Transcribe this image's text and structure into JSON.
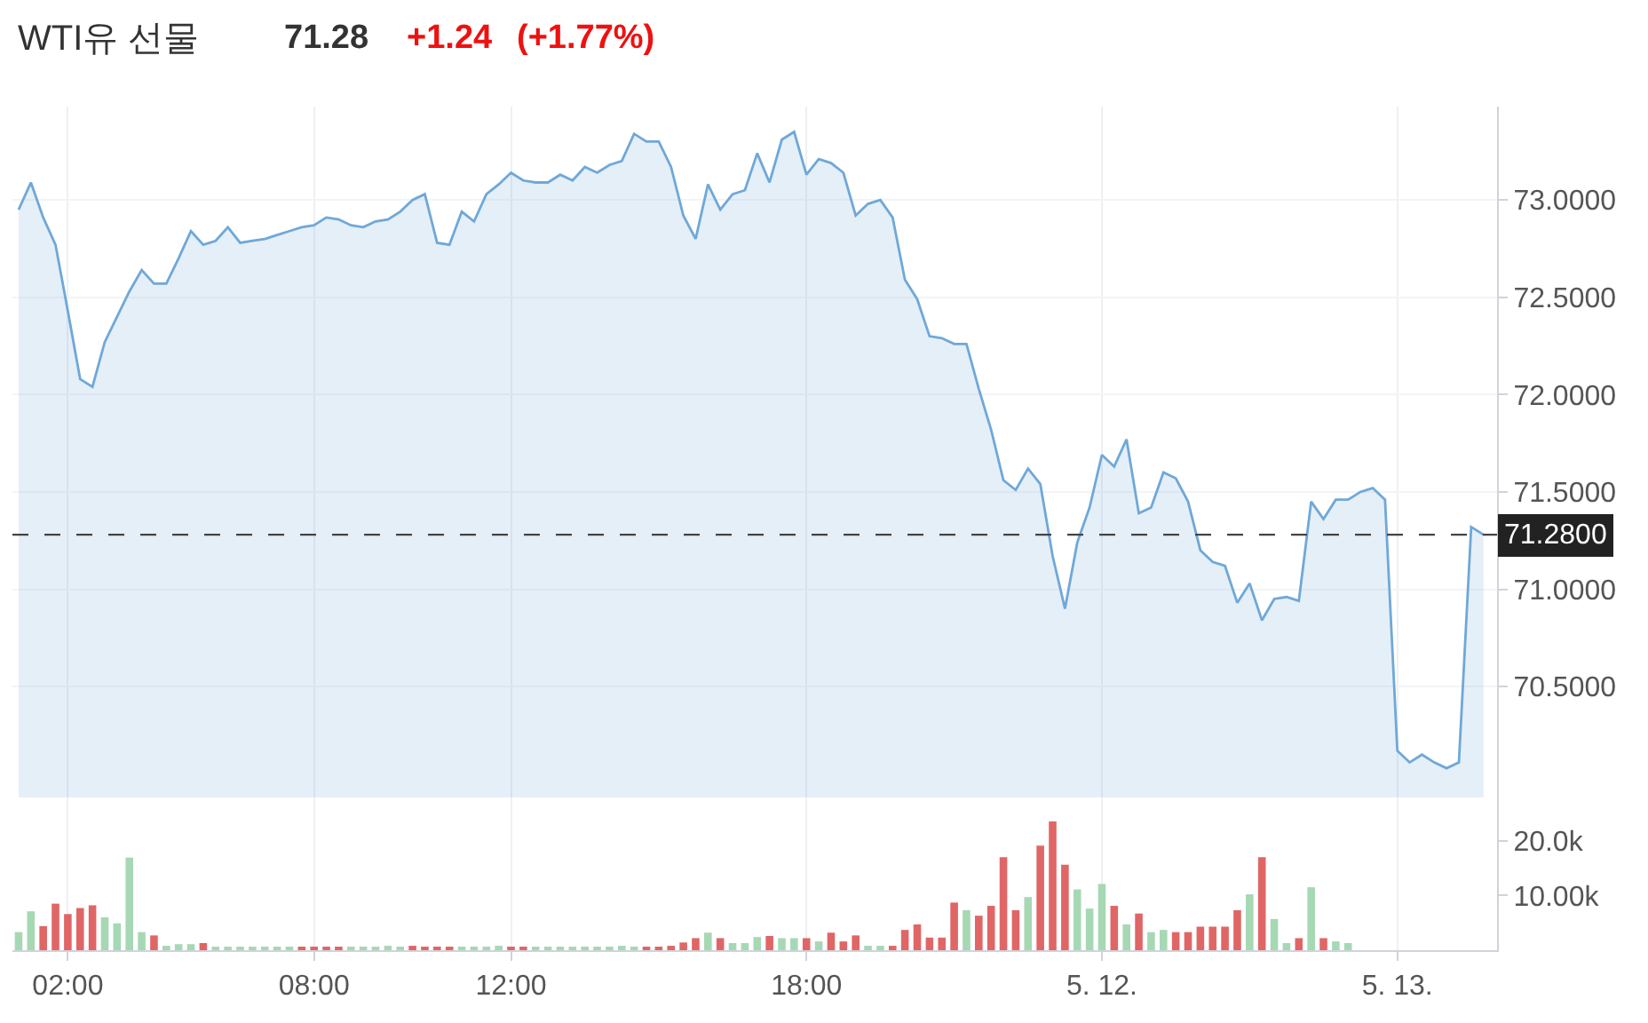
{
  "chart_data": [
    {
      "type": "area",
      "title": "WTI유 선물",
      "annotations": [
        "71.28",
        "+1.24",
        "(+1.77%)"
      ],
      "categories": [
        null,
        null,
        null,
        null,
        null,
        null,
        null,
        null,
        null,
        null,
        null,
        null,
        null,
        null,
        null,
        null,
        null,
        null,
        null,
        null,
        null,
        null,
        null,
        null,
        null,
        null,
        null,
        null,
        null,
        null,
        null,
        null,
        null,
        null,
        null,
        null,
        null,
        null,
        null,
        null,
        null,
        null,
        null,
        null,
        null,
        null,
        null,
        null,
        null,
        null,
        null,
        null,
        null,
        null,
        null,
        null,
        null,
        null,
        null,
        null,
        null,
        null,
        null,
        null,
        null,
        null,
        null,
        null,
        null,
        null,
        null,
        null,
        null,
        null,
        null,
        null,
        null,
        null,
        null,
        null,
        null,
        null,
        null,
        null,
        null,
        null,
        null,
        null,
        null,
        null,
        null,
        null,
        null,
        null,
        null,
        null,
        null,
        null,
        null,
        null,
        null,
        null,
        null,
        null,
        null,
        null,
        null,
        null,
        null,
        null,
        null,
        null,
        null,
        null,
        null,
        null,
        null,
        null,
        null,
        null
      ],
      "values": [
        72.95,
        73.09,
        72.91,
        72.77,
        72.43,
        72.08,
        72.04,
        72.27,
        72.4,
        72.53,
        72.64,
        72.57,
        72.57,
        72.7,
        72.84,
        72.77,
        72.79,
        72.86,
        72.78,
        72.79,
        72.8,
        72.82,
        72.84,
        72.86,
        72.87,
        72.91,
        72.9,
        72.87,
        72.86,
        72.89,
        72.9,
        72.94,
        73.0,
        73.03,
        72.78,
        72.77,
        72.94,
        72.89,
        73.03,
        73.08,
        73.14,
        73.1,
        73.09,
        73.09,
        73.13,
        73.1,
        73.17,
        73.14,
        73.18,
        73.2,
        73.34,
        73.3,
        73.3,
        73.17,
        72.92,
        72.8,
        73.08,
        72.95,
        73.03,
        73.05,
        73.24,
        73.09,
        73.31,
        73.35,
        73.13,
        73.21,
        73.19,
        73.14,
        72.92,
        72.98,
        73.0,
        72.91,
        72.59,
        72.49,
        72.3,
        72.29,
        72.26,
        72.26,
        72.03,
        71.82,
        71.56,
        71.51,
        71.62,
        71.54,
        71.17,
        70.9,
        71.24,
        71.42,
        71.69,
        71.63,
        71.77,
        71.39,
        71.42,
        71.6,
        71.57,
        71.45,
        71.2,
        71.14,
        71.12,
        70.93,
        71.03,
        70.84,
        70.95,
        70.96,
        70.94,
        71.45,
        71.36,
        71.46,
        71.46,
        71.5,
        71.52,
        71.46,
        70.17,
        70.11,
        70.15,
        70.11,
        70.08,
        70.11,
        71.32,
        71.28
      ],
      "color": "#6fa8d8",
      "ylim": [
        69.93,
        73.48
      ],
      "yticks": [
        {
          "value": 70.5,
          "label": "70.5000"
        },
        {
          "value": 71,
          "label": "71.0000"
        },
        {
          "value": 71.5,
          "label": "71.5000"
        },
        {
          "value": 72,
          "label": "72.0000"
        },
        {
          "value": 72.5,
          "label": "72.5000"
        },
        {
          "value": 73,
          "label": "73.0000"
        }
      ],
      "ref_lines": [
        {
          "axis": "y",
          "value": 71.28,
          "label": "71.2800",
          "color": "#444444",
          "line_style": "dashed"
        }
      ],
      "grid": true,
      "tick_labels": "y"
    },
    {
      "type": "bar",
      "categories": [
        null,
        null,
        null,
        null,
        "02:00",
        null,
        null,
        null,
        null,
        null,
        null,
        null,
        null,
        null,
        null,
        null,
        null,
        null,
        null,
        null,
        null,
        null,
        null,
        null,
        "08:00",
        null,
        null,
        null,
        null,
        null,
        null,
        null,
        null,
        null,
        null,
        null,
        null,
        null,
        null,
        null,
        "12:00",
        null,
        null,
        null,
        null,
        null,
        null,
        null,
        null,
        null,
        null,
        null,
        null,
        null,
        null,
        null,
        null,
        null,
        null,
        null,
        null,
        null,
        null,
        null,
        "18:00",
        null,
        null,
        null,
        null,
        null,
        null,
        null,
        null,
        null,
        null,
        null,
        null,
        null,
        null,
        null,
        null,
        null,
        null,
        null,
        null,
        null,
        null,
        null,
        "5. 12.",
        null,
        null,
        null,
        null,
        null,
        null,
        null,
        null,
        null,
        null,
        null,
        null,
        null,
        null,
        null,
        null,
        null,
        null,
        null,
        null,
        null,
        null,
        null,
        "5. 13.",
        null,
        null,
        null,
        null,
        null,
        null,
        null
      ],
      "values": [
        3300,
        7100,
        4400,
        8500,
        6600,
        7700,
        8200,
        6000,
        4900,
        16900,
        3300,
        2700,
        800,
        1100,
        1100,
        1300,
        500,
        500,
        500,
        500,
        500,
        500,
        500,
        500,
        500,
        500,
        500,
        500,
        500,
        500,
        800,
        500,
        800,
        500,
        500,
        500,
        500,
        500,
        500,
        800,
        500,
        500,
        500,
        500,
        500,
        500,
        500,
        500,
        500,
        800,
        500,
        500,
        500,
        800,
        1400,
        2200,
        3200,
        2200,
        1300,
        1300,
        2400,
        2600,
        2200,
        2200,
        2200,
        1600,
        3200,
        1600,
        2700,
        800,
        800,
        800,
        3700,
        4700,
        2300,
        2300,
        8700,
        7300,
        6300,
        8100,
        17000,
        7300,
        9700,
        19100,
        23500,
        15600,
        11100,
        7600,
        12100,
        8100,
        4700,
        6700,
        3300,
        3700,
        3300,
        3300,
        4300,
        4300,
        4300,
        7300,
        10200,
        17000,
        5700,
        1300,
        2200,
        11500,
        2200,
        1600,
        1300,
        null,
        null,
        null,
        null,
        null,
        null,
        null,
        null,
        null,
        null,
        null
      ],
      "colors": [
        "#a6d8b4",
        "#a6d8b4",
        "#e06666",
        "#e06666",
        "#e06666",
        "#e06666",
        "#e06666",
        "#a6d8b4",
        "#a6d8b4",
        "#a6d8b4",
        "#a6d8b4",
        "#e06666",
        "#a6d8b4",
        "#a6d8b4",
        "#a6d8b4",
        "#e06666",
        "#a6d8b4",
        "#a6d8b4",
        "#a6d8b4",
        "#a6d8b4",
        "#a6d8b4",
        "#a6d8b4",
        "#a6d8b4",
        "#e06666",
        "#e06666",
        "#e06666",
        "#e06666",
        "#a6d8b4",
        "#a6d8b4",
        "#a6d8b4",
        "#a6d8b4",
        "#a6d8b4",
        "#e06666",
        "#e06666",
        "#e06666",
        "#e06666",
        "#a6d8b4",
        "#a6d8b4",
        "#a6d8b4",
        "#a6d8b4",
        "#e06666",
        "#e06666",
        "#a6d8b4",
        "#a6d8b4",
        "#a6d8b4",
        "#a6d8b4",
        "#a6d8b4",
        "#a6d8b4",
        "#a6d8b4",
        "#a6d8b4",
        "#a6d8b4",
        "#e06666",
        "#e06666",
        "#e06666",
        "#e06666",
        "#e06666",
        "#a6d8b4",
        "#e06666",
        "#a6d8b4",
        "#a6d8b4",
        "#a6d8b4",
        "#e06666",
        "#a6d8b4",
        "#a6d8b4",
        "#e06666",
        "#a6d8b4",
        "#e06666",
        "#e06666",
        "#e06666",
        "#a6d8b4",
        "#a6d8b4",
        "#e06666",
        "#e06666",
        "#e06666",
        "#e06666",
        "#e06666",
        "#e06666",
        "#a6d8b4",
        "#e06666",
        "#e06666",
        "#e06666",
        "#e06666",
        "#a6d8b4",
        "#e06666",
        "#e06666",
        "#e06666",
        "#a6d8b4",
        "#a6d8b4",
        "#a6d8b4",
        "#e06666",
        "#a6d8b4",
        "#e06666",
        "#a6d8b4",
        "#a6d8b4",
        "#e06666",
        "#e06666",
        "#e06666",
        "#e06666",
        "#e06666",
        "#e06666",
        "#a6d8b4",
        "#e06666",
        "#a6d8b4",
        "#a6d8b4",
        "#e06666",
        "#a6d8b4",
        "#e06666",
        "#a6d8b4",
        "#a6d8b4",
        "#a6d8b4",
        "#a6d8b4",
        "#a6d8b4",
        "#a6d8b4",
        "#a6d8b4",
        "#a6d8b4",
        "#a6d8b4",
        "#a6d8b4",
        "#a6d8b4",
        "#a6d8b4",
        "#a6d8b4"
      ],
      "ylim": [
        0,
        27900
      ],
      "yticks": [
        {
          "value": 10000,
          "label": "10.00k"
        },
        {
          "value": 20000,
          "label": "20.0k"
        }
      ],
      "grid": "x"
    }
  ]
}
